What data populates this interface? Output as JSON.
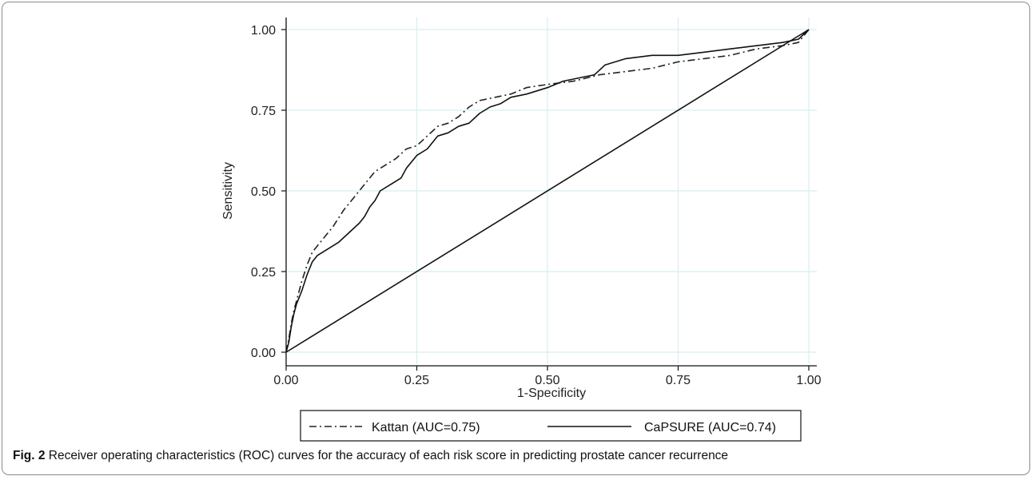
{
  "caption": {
    "label": "Fig. 2",
    "text": "Receiver operating characteristics (ROC) curves for the accuracy of each risk score in predicting prostate cancer recurrence"
  },
  "chart_data": {
    "type": "line",
    "title": "",
    "xlabel": "1-Specificity",
    "ylabel": "Sensitivity",
    "xlim": [
      0,
      1
    ],
    "ylim": [
      0,
      1
    ],
    "xticks": [
      "0.00",
      "0.25",
      "0.50",
      "0.75",
      "1.00"
    ],
    "yticks": [
      "0.00",
      "0.25",
      "0.50",
      "0.75",
      "1.00"
    ],
    "grid": true,
    "legend_position": "bottom",
    "series": [
      {
        "name": "Kattan (AUC=0.75)",
        "style": "dash-dot",
        "color": "#222222",
        "x": [
          0,
          0.005,
          0.01,
          0.015,
          0.02,
          0.03,
          0.04,
          0.05,
          0.07,
          0.09,
          0.11,
          0.13,
          0.15,
          0.17,
          0.19,
          0.21,
          0.23,
          0.25,
          0.27,
          0.29,
          0.31,
          0.33,
          0.35,
          0.37,
          0.4,
          0.43,
          0.46,
          0.5,
          0.55,
          0.6,
          0.65,
          0.7,
          0.75,
          0.8,
          0.85,
          0.9,
          0.95,
          0.98,
          1.0
        ],
        "y": [
          0,
          0.04,
          0.09,
          0.13,
          0.16,
          0.22,
          0.27,
          0.31,
          0.35,
          0.39,
          0.44,
          0.48,
          0.52,
          0.56,
          0.58,
          0.6,
          0.63,
          0.64,
          0.67,
          0.7,
          0.71,
          0.73,
          0.76,
          0.78,
          0.79,
          0.8,
          0.82,
          0.83,
          0.84,
          0.86,
          0.87,
          0.88,
          0.9,
          0.91,
          0.92,
          0.94,
          0.95,
          0.96,
          1.0
        ]
      },
      {
        "name": "CaPSURE (AUC=0.74)",
        "style": "solid",
        "color": "#111111",
        "x": [
          0,
          0.005,
          0.01,
          0.015,
          0.02,
          0.03,
          0.04,
          0.05,
          0.06,
          0.08,
          0.1,
          0.12,
          0.14,
          0.15,
          0.16,
          0.17,
          0.18,
          0.2,
          0.22,
          0.23,
          0.25,
          0.27,
          0.29,
          0.31,
          0.33,
          0.35,
          0.37,
          0.39,
          0.41,
          0.43,
          0.46,
          0.5,
          0.53,
          0.56,
          0.59,
          0.61,
          0.65,
          0.7,
          0.75,
          0.8,
          0.85,
          0.9,
          0.95,
          0.98,
          1.0
        ],
        "y": [
          0,
          0.03,
          0.08,
          0.12,
          0.15,
          0.19,
          0.24,
          0.28,
          0.3,
          0.32,
          0.34,
          0.37,
          0.4,
          0.42,
          0.45,
          0.47,
          0.5,
          0.52,
          0.54,
          0.57,
          0.61,
          0.63,
          0.67,
          0.68,
          0.7,
          0.71,
          0.74,
          0.76,
          0.77,
          0.79,
          0.8,
          0.82,
          0.84,
          0.85,
          0.86,
          0.89,
          0.91,
          0.92,
          0.92,
          0.93,
          0.94,
          0.95,
          0.96,
          0.97,
          1.0
        ]
      },
      {
        "name": "",
        "style": "solid",
        "color": "#111111",
        "x": [
          0,
          1
        ],
        "y": [
          0,
          1
        ]
      }
    ]
  }
}
